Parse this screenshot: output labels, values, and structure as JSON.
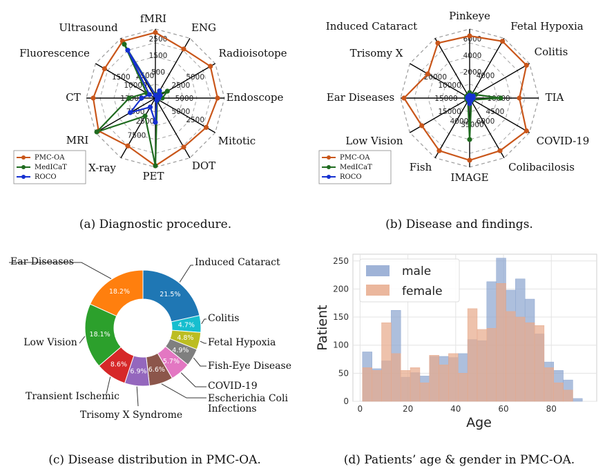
{
  "captions": {
    "a": "(a) Diagnostic procedure.",
    "b": "(b) Disease and findings.",
    "c": "(c) Disease distribution in PMC-OA.",
    "d": "(d) Patients’ age & gender in PMC-OA."
  },
  "colors": {
    "pmc": "#c9561a",
    "medicat": "#1f6b1f",
    "roco": "#1530d0",
    "blue": "#8ea6d0",
    "orange": "#e8aa8c"
  },
  "chart_data": [
    {
      "type": "radar",
      "axes": [
        "fMRI",
        "ENG",
        "Radioisotope",
        "Endoscope",
        "Mitotic",
        "DOT",
        "PET",
        "X-ray",
        "MRI",
        "CT",
        "Fluorescence",
        "Ultrasound"
      ],
      "series": [
        {
          "name": "PMC-OA",
          "values": [
            0.95,
            0.82,
            0.92,
            0.9,
            0.85,
            0.82,
            0.98,
            0.8,
            0.95,
            0.9,
            0.85,
            0.95
          ]
        },
        {
          "name": "MedICaT",
          "values": [
            0.05,
            0.06,
            0.2,
            0.1,
            0.04,
            0.05,
            0.98,
            0.3,
            0.98,
            0.38,
            0.15,
            0.9
          ]
        },
        {
          "name": "ROCO",
          "values": [
            0.04,
            0.12,
            0.08,
            0.05,
            0.03,
            0.04,
            0.35,
            0.15,
            0.42,
            0.2,
            0.1,
            0.8
          ]
        }
      ],
      "tick_labels": [
        {
          "axis": 0,
          "labels": [
            "500",
            "1500",
            "2500"
          ]
        },
        {
          "axis": 2,
          "labels": [
            "2500",
            "5000"
          ]
        },
        {
          "axis": 3,
          "labels": [
            "5000"
          ]
        },
        {
          "axis": 4,
          "labels": [
            "5000",
            "2500"
          ]
        },
        {
          "axis": 7,
          "labels": [
            "2500",
            "7500"
          ]
        },
        {
          "axis": 8,
          "labels": [
            "7500"
          ]
        },
        {
          "axis": 9,
          "labels": [
            "12500"
          ]
        },
        {
          "axis": 10,
          "labels": [
            "10000",
            "1500"
          ]
        },
        {
          "axis": 11,
          "labels": [
            "2500"
          ]
        }
      ]
    },
    {
      "type": "radar",
      "axes": [
        "Pinkeye",
        "Fetal Hypoxia",
        "Colitis",
        "TIA",
        "COVID-19",
        "Colibacilosis",
        "IMAGE",
        "Fish",
        "Low Vision",
        "Ear Diseases",
        "Trisomy X",
        "Induced Cataract"
      ],
      "series": [
        {
          "name": "PMC-OA",
          "values": [
            0.9,
            0.95,
            0.95,
            0.72,
            0.95,
            0.88,
            0.9,
            0.88,
            0.8,
            0.95,
            0.7,
            0.92
          ]
        },
        {
          "name": "MedICaT",
          "values": [
            0.08,
            0.06,
            0.1,
            0.45,
            0.05,
            0.05,
            0.6,
            0.05,
            0.04,
            0.05,
            0.05,
            0.05
          ]
        },
        {
          "name": "ROCO",
          "values": [
            0.04,
            0.03,
            0.06,
            0.05,
            0.03,
            0.04,
            0.08,
            0.03,
            0.02,
            0.03,
            0.03,
            0.03
          ]
        }
      ],
      "tick_labels": [
        {
          "axis": 0,
          "labels": [
            "2000",
            "4000",
            "6000"
          ]
        },
        {
          "axis": 1,
          "labels": [
            "4000"
          ]
        },
        {
          "axis": 3,
          "labels": [
            "10000"
          ]
        },
        {
          "axis": 4,
          "labels": [
            "4500"
          ]
        },
        {
          "axis": 5,
          "labels": [
            "6000"
          ]
        },
        {
          "axis": 6,
          "labels": [
            "35000"
          ]
        },
        {
          "axis": 7,
          "labels": [
            "4000"
          ]
        },
        {
          "axis": 8,
          "labels": [
            "15000"
          ]
        },
        {
          "axis": 9,
          "labels": [
            "15000"
          ]
        },
        {
          "axis": 10,
          "labels": [
            "10000",
            "20000"
          ]
        }
      ]
    },
    {
      "type": "pie",
      "labels": [
        "Induced Cataract",
        "Colitis",
        "Fetal Hypoxia",
        "Fish-Eye Disease",
        "COVID-19",
        "Escherichia Coli Infections",
        "Trisomy X Syndrome",
        "Transient Ischemic",
        "Low Vision",
        "Ear Diseases"
      ],
      "display_labels": [
        "Induced Cataract",
        "Colitis",
        "Fetal Hypoxia",
        "Fish-Eye Disease",
        "COVID-19",
        "Escherichia Coli\nInfections",
        "Trisomy X Syndrome",
        "Transient Ischemic",
        "Low Vision",
        "Ear Diseases"
      ],
      "values": [
        21.5,
        4.7,
        4.8,
        4.9,
        5.7,
        6.6,
        6.9,
        8.6,
        18.1,
        18.2
      ],
      "value_labels": [
        "21.5%",
        "4.7%",
        "4.8%",
        "4.9%",
        "5.7%",
        "6.6%",
        "6.9%",
        "8.6%",
        "18.1%",
        "18.2%"
      ],
      "colors": [
        "#1f77b4",
        "#17becf",
        "#bcbd22",
        "#7f7f7f",
        "#e377c2",
        "#8c564b",
        "#9467bd",
        "#d62728",
        "#2ca02c",
        "#ff7f0e"
      ]
    },
    {
      "type": "histogram",
      "xlabel": "Age",
      "ylabel": "Patient",
      "xlim": [
        -3,
        99
      ],
      "ylim": [
        0,
        262
      ],
      "xticks": [
        "0",
        "20",
        "40",
        "60",
        "80"
      ],
      "yticks": [
        "0",
        "50",
        "100",
        "150",
        "200",
        "250"
      ],
      "bin_edges": [
        1,
        5,
        9,
        13,
        17,
        21,
        25,
        29,
        33,
        37,
        41,
        45,
        49,
        53,
        57,
        61,
        65,
        69,
        73,
        77,
        81,
        85,
        89,
        93,
        97
      ],
      "series": [
        {
          "name": "male",
          "values": [
            88,
            58,
            72,
            162,
            43,
            51,
            45,
            80,
            80,
            78,
            85,
            110,
            108,
            213,
            255,
            198,
            218,
            182,
            120,
            70,
            55,
            38,
            5,
            0
          ]
        },
        {
          "name": "female",
          "values": [
            60,
            55,
            140,
            85,
            55,
            60,
            33,
            82,
            65,
            85,
            50,
            165,
            128,
            130,
            210,
            160,
            150,
            140,
            135,
            60,
            33,
            20,
            0,
            0
          ]
        }
      ],
      "legend": [
        "male",
        "female"
      ]
    }
  ]
}
